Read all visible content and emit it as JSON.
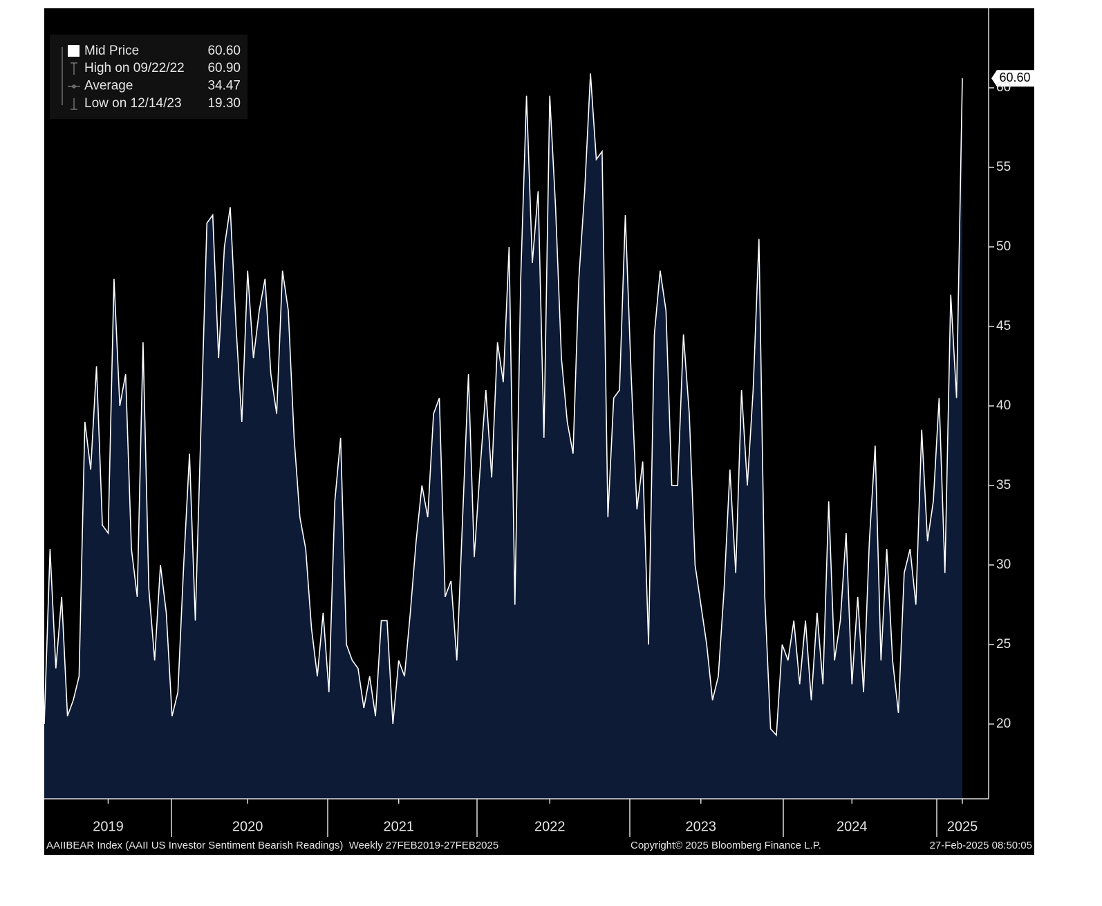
{
  "chart_data": {
    "type": "area",
    "series": [
      {
        "name": "Mid Price",
        "color": "#ffffff",
        "fill": "#0d1b36",
        "last_value": 60.6,
        "last_label": "60.60",
        "values": [
          20,
          31,
          23.5,
          28,
          20.5,
          21.5,
          23,
          39,
          36,
          42.5,
          32.5,
          32,
          48,
          40,
          42,
          31,
          28,
          44,
          28.5,
          24,
          30,
          27,
          20.5,
          22,
          30,
          37,
          26.5,
          39,
          51.5,
          52,
          43,
          50,
          52.5,
          45,
          39,
          48.5,
          43,
          46,
          48,
          42,
          39.5,
          48.5,
          46,
          38,
          33,
          31,
          26,
          23,
          27,
          22,
          34,
          38,
          25,
          24,
          23.5,
          21,
          23,
          20.5,
          26.5,
          26.5,
          20,
          24,
          23,
          27,
          31.5,
          35,
          33,
          39.5,
          40.5,
          28,
          29,
          24,
          33,
          42,
          30.5,
          36,
          41,
          35.5,
          44,
          41.5,
          50,
          27.5,
          48,
          59.5,
          49,
          53.5,
          38,
          59.5,
          52.5,
          43,
          39,
          37,
          48,
          53.5,
          60.9,
          55.5,
          56,
          33,
          40.5,
          41,
          52,
          42,
          33.5,
          36.5,
          25,
          44.5,
          48.5,
          46,
          35,
          35,
          44.5,
          39.5,
          30,
          27.5,
          25,
          21.5,
          23,
          28.5,
          36,
          29.5,
          41,
          35,
          41,
          50.5,
          28,
          19.7,
          19.3,
          25,
          24,
          26.5,
          22.5,
          26.5,
          21.5,
          27,
          22.5,
          34,
          24,
          26.5,
          32,
          22.5,
          28,
          22,
          31.5,
          37.5,
          24,
          31,
          24,
          20.7,
          29.5,
          31,
          27.5,
          38.5,
          31.5,
          34,
          40.5,
          29.5,
          47,
          40.5,
          60.6
        ]
      }
    ],
    "categories": [
      null,
      null,
      null,
      null,
      null,
      null,
      null,
      null,
      null,
      null,
      null,
      "2019",
      null,
      null,
      null,
      null,
      null,
      null,
      null,
      null,
      null,
      null,
      null,
      null,
      null,
      null,
      null,
      null,
      null,
      null,
      null,
      null,
      null,
      null,
      null,
      "2020",
      null,
      null,
      null,
      null,
      null,
      null,
      null,
      null,
      null,
      null,
      null,
      null,
      null,
      null,
      null,
      null,
      null,
      null,
      null,
      null,
      null,
      null,
      null,
      null,
      null,
      "2021",
      null,
      null,
      null,
      null,
      null,
      null,
      null,
      null,
      null,
      null,
      null,
      null,
      null,
      null,
      null,
      null,
      null,
      null,
      null,
      null,
      null,
      null,
      null,
      null,
      null,
      "2022",
      null,
      null,
      null,
      null,
      null,
      null,
      null,
      null,
      null,
      null,
      null,
      null,
      null,
      null,
      null,
      null,
      null,
      null,
      null,
      null,
      null,
      null,
      null,
      null,
      null,
      "2023",
      null,
      null,
      null,
      null,
      null,
      null,
      null,
      null,
      null,
      null,
      null,
      null,
      null,
      null,
      null,
      null,
      null,
      null,
      null,
      null,
      null,
      null,
      null,
      null,
      null,
      "2024",
      null,
      null,
      null,
      null,
      null,
      null,
      null,
      null,
      null,
      null,
      null,
      null,
      null,
      null,
      null,
      null,
      null,
      null,
      "2025"
    ],
    "ylim": [
      15.3,
      65
    ],
    "yticks": [
      20,
      25,
      30,
      35,
      40,
      45,
      50,
      55,
      60
    ],
    "legend_stats": [
      {
        "label": "High on 09/22/22",
        "value": 60.9,
        "value_label": "60.90"
      },
      {
        "label": "Average",
        "value": 34.47,
        "value_label": "34.47"
      },
      {
        "label": "Low on 12/14/23",
        "value": 19.3,
        "value_label": "19.30"
      }
    ],
    "footer": {
      "description": "AAIIBEAR Index (AAII US Investor Sentiment Bearish Readings)  Weekly 27FEB2019-27FEB2025",
      "copyright": "Copyright© 2025 Bloomberg Finance L.P.",
      "timestamp": "27-Feb-2025 08:50:05"
    }
  }
}
